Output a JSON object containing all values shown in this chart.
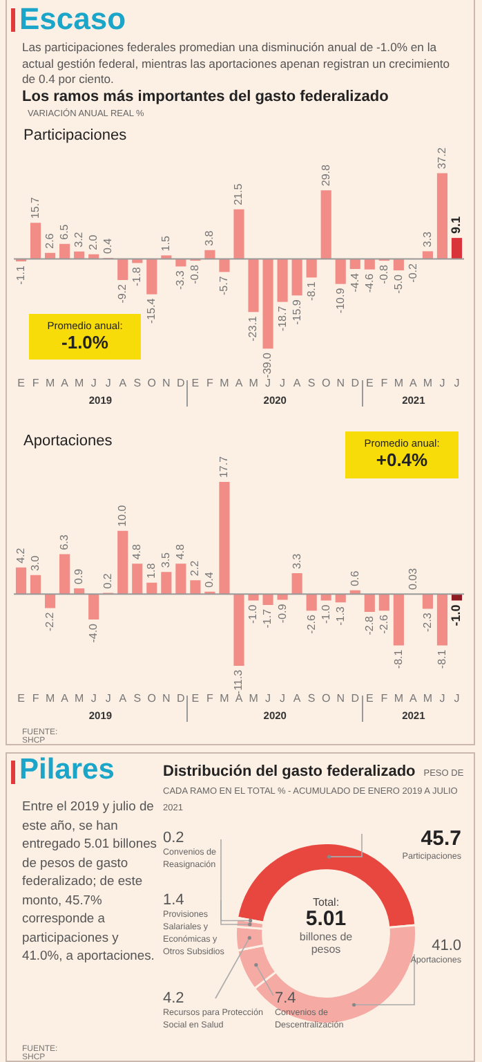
{
  "chart_data": [
    {
      "type": "other",
      "title": "Escaso",
      "subtitle": "Las participaciones federales promedian una disminución anual de -1.0% en la actual gestión federal, mientras las aportaciones apenan registran un crecimiento de 0.4 por ciento.",
      "annotations": [
        "Los ramos más importantes del gasto federalizado",
        "VARIACIÓN ANUAL REAL %"
      ]
    },
    {
      "type": "bar",
      "title": "Participaciones",
      "categories": [
        "E",
        "F",
        "M",
        "A",
        "M",
        "J",
        "J",
        "A",
        "S",
        "O",
        "N",
        "D",
        "E",
        "F",
        "M",
        "A",
        "M",
        "J",
        "J",
        "A",
        "S",
        "O",
        "N",
        "D",
        "E",
        "F",
        "M",
        "A",
        "M",
        "J",
        "J"
      ],
      "values": [
        -1.1,
        15.7,
        2.6,
        6.5,
        3.2,
        2.0,
        0.4,
        -9.2,
        -1.8,
        -15.4,
        1.5,
        -3.3,
        -0.8,
        3.8,
        -5.7,
        21.5,
        -23.1,
        -39.0,
        -18.7,
        -15.9,
        -8.1,
        29.8,
        -10.9,
        -4.4,
        -4.6,
        -0.8,
        -5.0,
        -0.2,
        3.3,
        37.2,
        9.1
      ],
      "value_labels": [
        "-1.1",
        "15.7",
        "2.6",
        "6.5",
        "3.2",
        "2.0",
        "0.4",
        "-9.2",
        "-1.8",
        "-15.4",
        "1.5",
        "-3.3",
        "-0.8",
        "3.8",
        "-5.7",
        "21.5",
        "-23.1",
        "-39.0",
        "-18.7",
        "-15.9",
        "-8.1",
        "29.8",
        "-10.9",
        "-4.4",
        "-4.6",
        "-0.8",
        "-5.0",
        "-0.2",
        "3.3",
        "37.2",
        "9.1"
      ],
      "colors": [
        "#f28c86",
        "#f28c86",
        "#f28c86",
        "#f28c86",
        "#f28c86",
        "#f28c86",
        "#f28c86",
        "#f28c86",
        "#f28c86",
        "#f28c86",
        "#f28c86",
        "#f28c86",
        "#f28c86",
        "#f28c86",
        "#f28c86",
        "#f28c86",
        "#f28c86",
        "#f28c86",
        "#f28c86",
        "#f28c86",
        "#f28c86",
        "#f28c86",
        "#f28c86",
        "#f28c86",
        "#f28c86",
        "#f28c86",
        "#f28c86",
        "#f28c86",
        "#f28c86",
        "#f28c86",
        "#d9343a"
      ],
      "tick_labels": "x",
      "annotations": [
        "Promedio anual:",
        "-1.0%",
        "2019",
        "2020",
        "2021"
      ]
    },
    {
      "type": "bar",
      "title": "Aportaciones",
      "categories": [
        "E",
        "F",
        "M",
        "A",
        "M",
        "J",
        "J",
        "A",
        "S",
        "O",
        "N",
        "D",
        "E",
        "F",
        "M",
        "A",
        "M",
        "J",
        "J",
        "A",
        "S",
        "O",
        "N",
        "D",
        "E",
        "F",
        "M",
        "A",
        "M",
        "J",
        "J"
      ],
      "values": [
        4.2,
        3.0,
        -2.2,
        6.3,
        0.9,
        -4.0,
        0.2,
        10.0,
        4.8,
        1.8,
        3.5,
        4.8,
        2.2,
        0.4,
        17.7,
        -11.3,
        -1.0,
        -1.7,
        -0.9,
        3.3,
        -2.6,
        -1.0,
        -1.3,
        0.6,
        -2.8,
        -2.6,
        -8.1,
        0.03,
        -2.3,
        -8.1,
        -1.0
      ],
      "value_labels": [
        "4.2",
        "3.0",
        "-2.2",
        "6.3",
        "0.9",
        "-4.0",
        "0.2",
        "10.0",
        "4.8",
        "1.8",
        "3.5",
        "4.8",
        "2.2",
        "0.4",
        "17.7",
        "-11.3",
        "-1.0",
        "-1.7",
        "-0.9",
        "3.3",
        "-2.6",
        "-1.0",
        "-1.3",
        "0.6",
        "-2.8",
        "-2.6",
        "-8.1",
        "0.03",
        "-2.3",
        "-8.1",
        "-1.0"
      ],
      "colors": [
        "#f28c86",
        "#f28c86",
        "#f28c86",
        "#f28c86",
        "#f28c86",
        "#f28c86",
        "#f28c86",
        "#f28c86",
        "#f28c86",
        "#f28c86",
        "#f28c86",
        "#f28c86",
        "#f28c86",
        "#f28c86",
        "#f28c86",
        "#f28c86",
        "#f28c86",
        "#f28c86",
        "#f28c86",
        "#f28c86",
        "#f28c86",
        "#f28c86",
        "#f28c86",
        "#f28c86",
        "#f28c86",
        "#f28c86",
        "#f28c86",
        "#f28c86",
        "#f28c86",
        "#f28c86",
        "#8e1b22"
      ],
      "tick_labels": "x",
      "annotations": [
        "Promedio anual:",
        "+0.4%",
        "2019",
        "2020",
        "2021",
        "FUENTE: SHCP"
      ]
    },
    {
      "type": "other",
      "title": "Pilares",
      "subtitle": "Entre el 2019 y julio de este año, se han entregado 5.01 billones de pesos de gasto federalizado; de este monto, 45.7% corresponde a participaciones y 41.0%, a aportaciones."
    },
    {
      "type": "donut",
      "title": "Distribución del gasto federalizado",
      "subtitle": "PESO DE CADA RAMO EN EL TOTAL % - ACUMULADO DE ENERO 2019 A JULIO 2021",
      "categories": [
        "Participaciones",
        "Aportaciones",
        "Convenios de Descentralización",
        "Recursos para Protección Social en Salud",
        "Provisiones Salariales y Económicas y Otros Subsidios",
        "Convenios de Reasignación"
      ],
      "values": [
        45.7,
        41.0,
        7.4,
        4.2,
        1.4,
        0.2
      ],
      "value_labels": [
        "45.7",
        "41.0",
        "7.4",
        "4.2",
        "1.4",
        "0.2"
      ],
      "colors": [
        "#e8473f",
        "#f5aaa4",
        "#f5aaa4",
        "#f5aaa4",
        "#f5aaa4",
        "#f5aaa4"
      ],
      "annotations": [
        "Total:",
        "5.01",
        "billones de pesos",
        "FUENTE: SHCP"
      ]
    }
  ]
}
